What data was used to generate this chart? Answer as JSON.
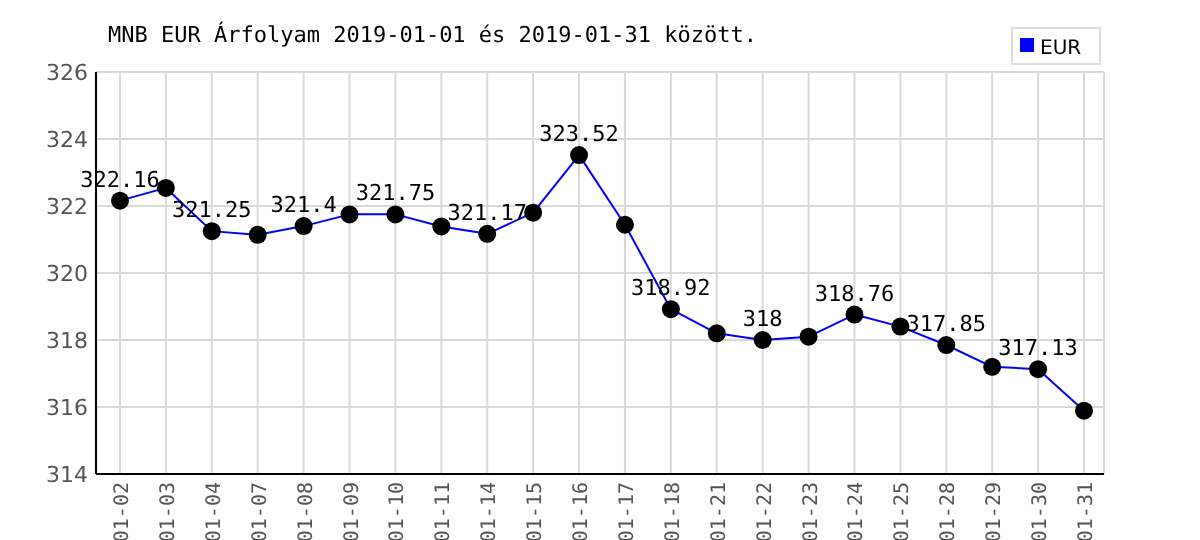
{
  "chart_data": {
    "type": "line",
    "title": "MNB EUR Árfolyam 2019-01-01 és 2019-01-31 között.",
    "categories": [
      "01-02",
      "01-03",
      "01-04",
      "01-07",
      "01-08",
      "01-09",
      "01-10",
      "01-11",
      "01-14",
      "01-15",
      "01-16",
      "01-17",
      "01-18",
      "01-21",
      "01-22",
      "01-23",
      "01-24",
      "01-25",
      "01-28",
      "01-29",
      "01-30",
      "01-31"
    ],
    "series": [
      {
        "name": "EUR",
        "color": "#0000ff",
        "values": [
          322.16,
          322.54,
          321.25,
          321.14,
          321.4,
          321.75,
          321.75,
          321.39,
          321.17,
          321.8,
          323.52,
          321.44,
          318.92,
          318.2,
          318,
          318.1,
          318.76,
          318.4,
          317.85,
          317.2,
          317.13,
          315.89
        ],
        "value_labels": [
          "322.16",
          null,
          "321.25",
          null,
          "321.4",
          null,
          "321.75",
          null,
          "321.17",
          null,
          "323.52",
          null,
          "318.92",
          null,
          "318",
          null,
          "318.76",
          null,
          "317.85",
          null,
          "317.13",
          null
        ]
      }
    ],
    "ylim": [
      314,
      326
    ],
    "yticks": [
      314,
      316,
      318,
      320,
      322,
      324,
      326
    ],
    "grid": true,
    "legend": "top right",
    "marker": "circle",
    "line_style": "solid"
  }
}
